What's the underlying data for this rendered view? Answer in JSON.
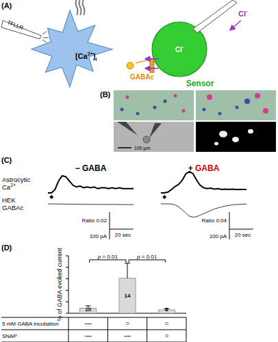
{
  "panels": {
    "a": {
      "label": "(A)",
      "stimulus": "TFLLR",
      "calcium": {
        "base": "[Ca",
        "sup": "2+",
        "tail": "]",
        "sub": "i"
      },
      "receptor": "GABAc",
      "ion": {
        "base": "Cl",
        "sup": "-"
      },
      "sensor": "Sensor"
    },
    "b": {
      "label": "(B)",
      "scale_bar": "100 μm"
    },
    "c": {
      "label": "(C)",
      "conditions": [
        {
          "sign": "−",
          "name": "GABA",
          "color": "#000000"
        },
        {
          "sign": "+",
          "name": "GABA",
          "color": "#cc0000"
        }
      ],
      "row_labels": [
        {
          "lines": [
            "Astrocytic",
            "Ca"
          ],
          "sup": "2+"
        },
        {
          "lines": [
            "HEK",
            "GABAc"
          ]
        }
      ],
      "dt_sec": 3,
      "stimulus_sec": 3,
      "time_scale": {
        "value": 20,
        "label": "20 sec"
      },
      "current_scale": {
        "value": 100,
        "label": "100 pA"
      },
      "traces": [
        {
          "ca_scale": {
            "value": 0.02,
            "label": "Ratio 0.02"
          },
          "ca": [
            0,
            0,
            0.004,
            0.014,
            0.02,
            0.019,
            0.014,
            0.009,
            0.007,
            0.008,
            0.006,
            0.007,
            0.006,
            0.007,
            0.005,
            0.006,
            0.006,
            0.005,
            0.006,
            0.005,
            0.006,
            0.005,
            0.005,
            0.005,
            0.005
          ],
          "current": [
            0,
            -1,
            -1,
            -2,
            -2,
            -3,
            -3,
            -3,
            -4,
            -4,
            -4,
            -5,
            -5,
            -5,
            -5,
            -6,
            -6,
            -6,
            -6,
            -6,
            -7,
            -7,
            -7,
            -7,
            -7
          ]
        },
        {
          "ca_scale": {
            "value": 0.04,
            "label": "Ratio 0.04"
          },
          "ca": [
            0,
            0,
            0.002,
            0.008,
            0.015,
            0.02,
            0.03,
            0.045,
            0.05,
            0.045,
            0.03,
            0.018,
            0.012,
            0.01,
            0.011,
            0.009,
            0.01,
            0.008,
            0.009,
            0.008,
            0.009,
            0.008,
            0.008,
            0.008,
            0.008
          ],
          "current": [
            0,
            0,
            0,
            -2,
            -10,
            -30,
            -60,
            -90,
            -120,
            -130,
            -125,
            -110,
            -95,
            -80,
            -65,
            -50,
            -40,
            -30,
            -22,
            -15,
            -10,
            -7,
            -5,
            -3,
            -2
          ]
        }
      ]
    },
    "d": {
      "label": "(D)"
    }
  },
  "chart_data": {
    "type": "bar",
    "y_label": "% of GABA evoked current",
    "categories": [
      null,
      null,
      null
    ],
    "values": [
      0.9,
      6.1,
      0.6
    ],
    "errors": [
      0.4,
      2.6,
      0.2
    ],
    "n": [
      10,
      14,
      8
    ],
    "color": "#d9d9d9",
    "ylim": [
      0,
      10
    ],
    "yticks": [
      0,
      2,
      4,
      6,
      8,
      10
    ],
    "tick_labels": false,
    "comparisons": [
      {
        "from": 0,
        "to": 1,
        "label": "p = 0.01"
      },
      {
        "from": 1,
        "to": 2,
        "label": "p = 0.01"
      }
    ],
    "conditions": [
      {
        "label": "5 mM GABA incubation",
        "cells": [
          "—",
          "○",
          "○"
        ]
      },
      {
        "label": "SNAP",
        "cells": [
          "—",
          "—",
          "○"
        ]
      }
    ]
  }
}
